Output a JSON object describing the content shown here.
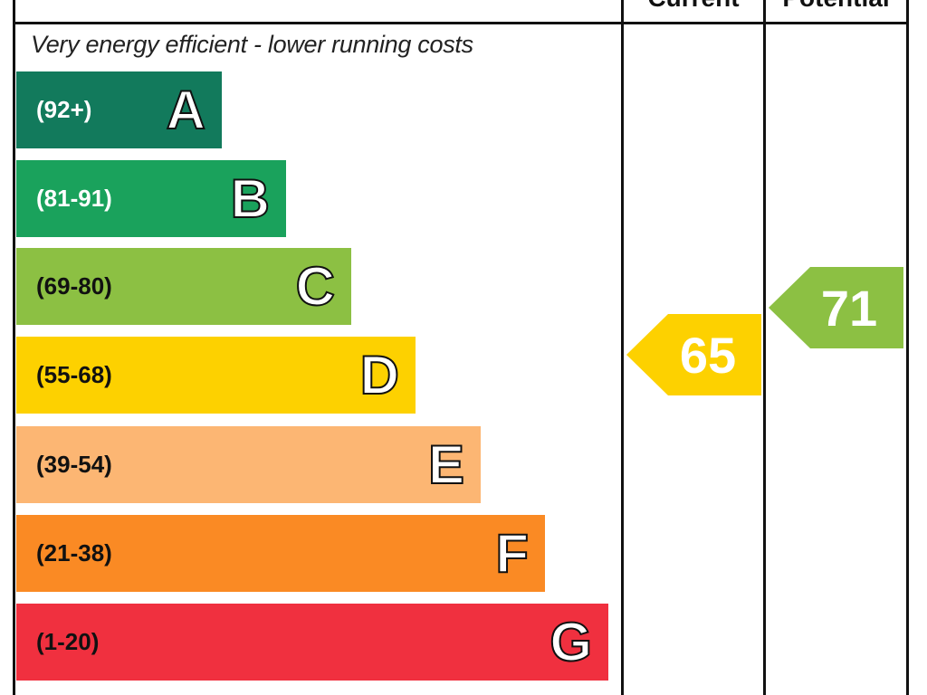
{
  "columns": {
    "current": "Current",
    "potential": "Potential"
  },
  "caption": "Very energy efficient - lower running costs",
  "chart_data": {
    "type": "bar",
    "categories": [
      "A",
      "B",
      "C",
      "D",
      "E",
      "F",
      "G"
    ],
    "bands": [
      {
        "letter": "A",
        "range": "(92+)",
        "color": "#127a5c",
        "label_color": "#ffffff"
      },
      {
        "letter": "B",
        "range": "(81-91)",
        "color": "#1aa25c",
        "label_color": "#ffffff"
      },
      {
        "letter": "C",
        "range": "(69-80)",
        "color": "#8cc043",
        "label_color": "#111111"
      },
      {
        "letter": "D",
        "range": "(55-68)",
        "color": "#fdd100",
        "label_color": "#111111"
      },
      {
        "letter": "E",
        "range": "(39-54)",
        "color": "#fcb673",
        "label_color": "#111111"
      },
      {
        "letter": "F",
        "range": "(21-38)",
        "color": "#fa8a24",
        "label_color": "#111111"
      },
      {
        "letter": "G",
        "range": "(1-20)",
        "color": "#f0303f",
        "label_color": "#111111"
      }
    ],
    "current": {
      "value": "65",
      "band": "D",
      "color": "#fdd100"
    },
    "potential": {
      "value": "71",
      "band": "C",
      "color": "#8cc043"
    }
  }
}
